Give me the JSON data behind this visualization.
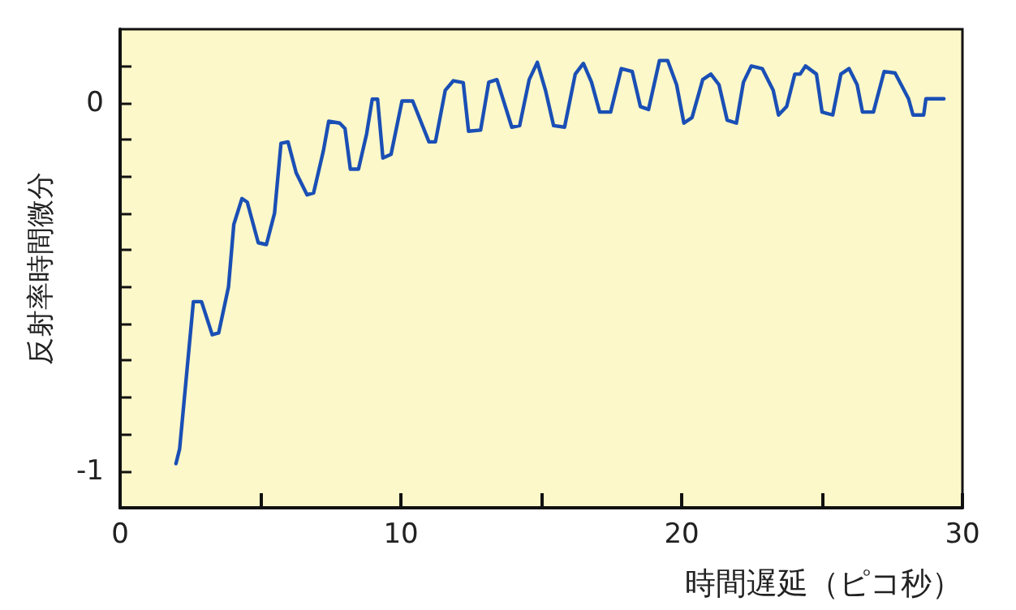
{
  "chart_data": {
    "type": "line",
    "xlabel": "時間遅延（ピコ秒）",
    "ylabel": "反射率時間微分",
    "x": [
      1.99,
      2.12,
      2.61,
      2.9,
      3.28,
      3.51,
      3.86,
      4.05,
      4.34,
      4.53,
      4.92,
      5.21,
      5.5,
      5.73,
      5.98,
      6.27,
      6.66,
      6.89,
      7.24,
      7.43,
      7.82,
      8.01,
      8.2,
      8.49,
      8.78,
      8.98,
      9.17,
      9.36,
      9.65,
      10.04,
      10.42,
      11.0,
      11.23,
      11.58,
      11.87,
      12.22,
      12.41,
      12.84,
      13.13,
      13.42,
      13.95,
      14.23,
      14.57,
      14.86,
      15.15,
      15.44,
      15.83,
      16.21,
      16.5,
      16.79,
      17.08,
      17.47,
      17.85,
      18.24,
      18.53,
      18.82,
      19.21,
      19.5,
      19.82,
      20.08,
      20.37,
      20.75,
      21.04,
      21.33,
      21.62,
      21.95,
      22.2,
      22.48,
      22.87,
      23.26,
      23.45,
      23.74,
      24.03,
      24.22,
      24.41,
      24.8,
      25.0,
      25.38,
      25.67,
      25.96,
      26.25,
      26.44,
      26.83,
      27.21,
      27.6,
      28.08,
      28.24,
      28.62,
      28.7,
      29.34
    ],
    "series": [
      {
        "color": "#1a4fb5",
        "values": [
          -0.98,
          -0.94,
          -0.54,
          -0.54,
          -0.63,
          -0.625,
          -0.5,
          -0.33,
          -0.26,
          -0.27,
          -0.38,
          -0.385,
          -0.3,
          -0.11,
          -0.106,
          -0.19,
          -0.25,
          -0.245,
          -0.13,
          -0.05,
          -0.055,
          -0.07,
          -0.18,
          -0.18,
          -0.084,
          0.01,
          0.01,
          -0.15,
          -0.14,
          0.005,
          0.005,
          -0.106,
          -0.106,
          0.034,
          0.06,
          0.055,
          -0.077,
          -0.074,
          0.056,
          0.063,
          -0.066,
          -0.062,
          0.063,
          0.11,
          0.034,
          -0.062,
          -0.066,
          0.078,
          0.107,
          0.056,
          -0.025,
          -0.025,
          0.093,
          0.085,
          -0.01,
          -0.018,
          0.115,
          0.115,
          0.049,
          -0.055,
          -0.04,
          0.063,
          0.078,
          0.049,
          -0.047,
          -0.055,
          0.056,
          0.1,
          0.093,
          0.034,
          -0.033,
          -0.01,
          0.078,
          0.078,
          0.1,
          0.078,
          -0.025,
          -0.033,
          0.078,
          0.093,
          0.049,
          -0.025,
          -0.025,
          0.085,
          0.081,
          0.011,
          -0.033,
          -0.033,
          0.011,
          0.011
        ]
      }
    ],
    "xlim": [
      0,
      30
    ],
    "xticks": [
      0,
      {
        "value": 5,
        "label": null
      },
      10,
      {
        "value": 15,
        "label": null
      },
      20,
      {
        "value": 25,
        "label": null
      },
      30
    ],
    "ylim": [
      -1.1,
      0.2
    ],
    "yticks": [
      -1,
      {
        "value": -0.9,
        "label": null
      },
      {
        "value": -0.8,
        "label": null
      },
      {
        "value": -0.7,
        "label": null
      },
      {
        "value": -0.6,
        "label": null
      },
      {
        "value": -0.5,
        "label": null
      },
      {
        "value": -0.4,
        "label": null
      },
      {
        "value": -0.3,
        "label": null
      },
      {
        "value": -0.2,
        "label": null
      },
      {
        "value": -0.1,
        "label": null
      },
      0,
      {
        "value": 0.1,
        "label": null
      }
    ],
    "grid": false,
    "marker": "none",
    "line_style": "solid"
  }
}
